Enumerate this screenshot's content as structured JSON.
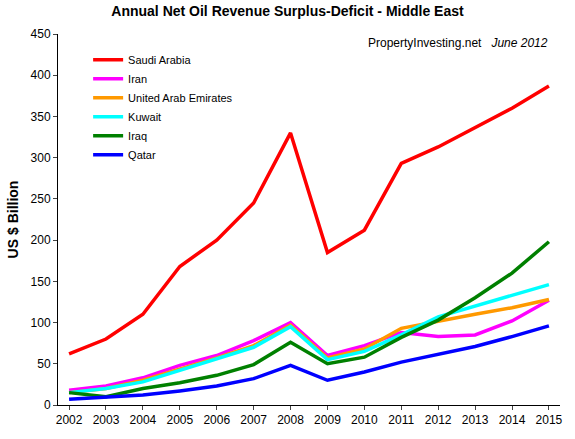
{
  "chart_data": {
    "type": "line",
    "title": "Annual Net Oil Revenue Surplus-Deficit - Middle East",
    "y_label": "US $ Billion",
    "annotations": [
      "PropertyInvesting.net",
      "June 2012"
    ],
    "categories": [
      "2002",
      "2003",
      "2004",
      "2005",
      "2006",
      "2007",
      "2008",
      "2009",
      "2010",
      "2011",
      "2012",
      "2013",
      "2014",
      "2015"
    ],
    "series": [
      {
        "name": "Saudi Arabia",
        "color": "#ff0000",
        "values": [
          62,
          80,
          110,
          168,
          200,
          245,
          330,
          185,
          212,
          293,
          313,
          337,
          360,
          387
        ]
      },
      {
        "name": "Iran",
        "color": "#ff00ff",
        "values": [
          18,
          23,
          33,
          48,
          60,
          78,
          100,
          60,
          72,
          88,
          83,
          85,
          102,
          127
        ]
      },
      {
        "name": "United Arab Emirates",
        "color": "#ff9900",
        "values": [
          15,
          20,
          30,
          43,
          57,
          72,
          97,
          57,
          68,
          93,
          102,
          110,
          118,
          128
        ]
      },
      {
        "name": "Kuwait",
        "color": "#00ffff",
        "values": [
          15,
          20,
          28,
          42,
          55,
          70,
          95,
          55,
          65,
          85,
          107,
          120,
          132,
          146
        ]
      },
      {
        "name": "Iraq",
        "color": "#008000",
        "values": [
          15,
          10,
          20,
          27,
          36,
          49,
          76,
          50,
          58,
          82,
          103,
          130,
          160,
          198
        ]
      },
      {
        "name": "Qatar",
        "color": "#0000ff",
        "values": [
          7,
          9,
          12,
          17,
          23,
          32,
          48,
          30,
          40,
          52,
          61,
          71,
          83,
          96
        ]
      }
    ],
    "ylim": [
      0,
      450
    ],
    "yticks": [
      0,
      50,
      100,
      150,
      200,
      250,
      300,
      350,
      400,
      450
    ],
    "grid": false,
    "legend": "top left"
  }
}
